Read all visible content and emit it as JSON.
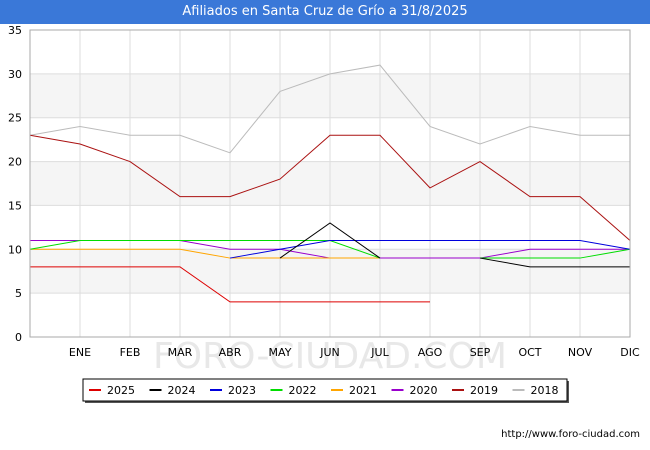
{
  "header": {
    "title": "Afiliados en Santa Cruz de Grío a 31/8/2025"
  },
  "footer": {
    "source": "http://www.foro-ciudad.com"
  },
  "watermark": "FORO-CIUDAD.COM",
  "chart_data": {
    "type": "line",
    "title": "Afiliados en Santa Cruz de Grío a 31/8/2025",
    "xlabel": "",
    "ylabel": "",
    "categories": [
      "",
      "ENE",
      "FEB",
      "MAR",
      "ABR",
      "MAY",
      "JUN",
      "JUL",
      "AGO",
      "SEP",
      "OCT",
      "NOV",
      "DIC"
    ],
    "ylim": [
      0,
      35
    ],
    "yticks": [
      0,
      5,
      10,
      15,
      20,
      25,
      30,
      35
    ],
    "grid": true,
    "legend_position": "bottom",
    "series": [
      {
        "name": "2025",
        "color": "#dd0000",
        "values": [
          8,
          8,
          8,
          8,
          4,
          4,
          4,
          4,
          4,
          null,
          null,
          null,
          null
        ]
      },
      {
        "name": "2024",
        "color": "#000000",
        "values": [
          null,
          null,
          null,
          null,
          null,
          9,
          13,
          9,
          null,
          9,
          8,
          8,
          8
        ]
      },
      {
        "name": "2023",
        "color": "#0000dd",
        "values": [
          null,
          null,
          null,
          null,
          9,
          10,
          11,
          11,
          11,
          11,
          11,
          11,
          10
        ]
      },
      {
        "name": "2022",
        "color": "#00dd00",
        "values": [
          10,
          11,
          11,
          11,
          11,
          11,
          11,
          9,
          null,
          9,
          9,
          9,
          10
        ]
      },
      {
        "name": "2021",
        "color": "#ffa500",
        "values": [
          10,
          10,
          10,
          10,
          9,
          9,
          9,
          9,
          null,
          null,
          null,
          null,
          null
        ]
      },
      {
        "name": "2020",
        "color": "#9900cc",
        "values": [
          11,
          11,
          11,
          11,
          10,
          10,
          9,
          9,
          9,
          9,
          10,
          10,
          10
        ]
      },
      {
        "name": "2019",
        "color": "#aa1111",
        "values": [
          23,
          22,
          20,
          16,
          16,
          18,
          23,
          23,
          17,
          20,
          16,
          16,
          11
        ]
      },
      {
        "name": "2018",
        "color": "#bbbbbb",
        "values": [
          23,
          24,
          23,
          23,
          21,
          28,
          30,
          31,
          24,
          22,
          24,
          23,
          23
        ]
      }
    ]
  }
}
